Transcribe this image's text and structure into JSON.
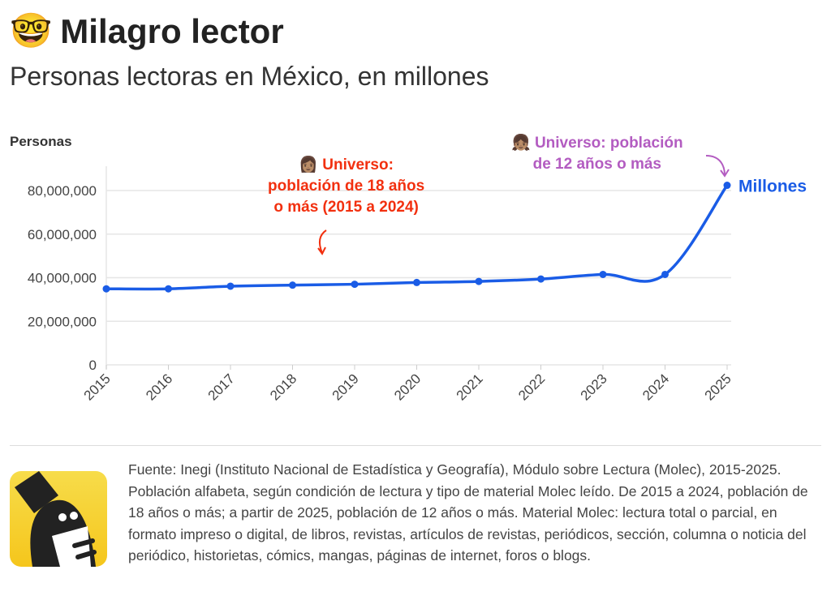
{
  "header": {
    "emoji": "🤓",
    "title": "Milagro lector",
    "subtitle": "Personas lectoras en México, en millones"
  },
  "chart_data": {
    "type": "line",
    "ylabel": "Personas",
    "x": [
      "2015",
      "2016",
      "2017",
      "2018",
      "2019",
      "2020",
      "2021",
      "2022",
      "2023",
      "2024",
      "2025"
    ],
    "series": [
      {
        "name": "Millones",
        "values": [
          34900000,
          34900000,
          36100000,
          36600000,
          37000000,
          37800000,
          38300000,
          39400000,
          41500000,
          41500000,
          82400000
        ],
        "color": "#1a5ce6"
      }
    ],
    "yticks": [
      0,
      20000000,
      40000000,
      60000000,
      80000000
    ],
    "ytick_labels": [
      "0",
      "20,000,000",
      "40,000,000",
      "60,000,000",
      "80,000,000"
    ],
    "ylim": [
      0,
      91000000
    ],
    "grid": true,
    "annotations": [
      {
        "emoji": "👩🏽",
        "text_line1": "Universo:",
        "text_line2": "población de 18 años",
        "text_line3": "o más (2015 a 2024)",
        "color": "#f2300f"
      },
      {
        "emoji": "👧🏽",
        "text_line1": "Universo: población",
        "text_line2": "de 12 años o más",
        "color": "#b35cc1"
      }
    ]
  },
  "footer": {
    "source": "Fuente: Inegi (Instituto Nacional de Estadística y Geografía), Módulo sobre Lectura (Molec), 2015-2025. Población alfabeta, según condición de lectura y tipo de material Molec leído. De 2015 a 2024, población de 18 años o más; a partir de 2025, población de 12 años o más. Material Molec: lectura total o parcial, en formato impreso o digital, de libros, revistas, artículos de revistas, periódicos, sección, columna o noticia del periódico, historietas, cómics, mangas, páginas de internet, foros o blogs.",
    "logo_colors": [
      "#f7dc4a",
      "#f5c61c"
    ]
  }
}
